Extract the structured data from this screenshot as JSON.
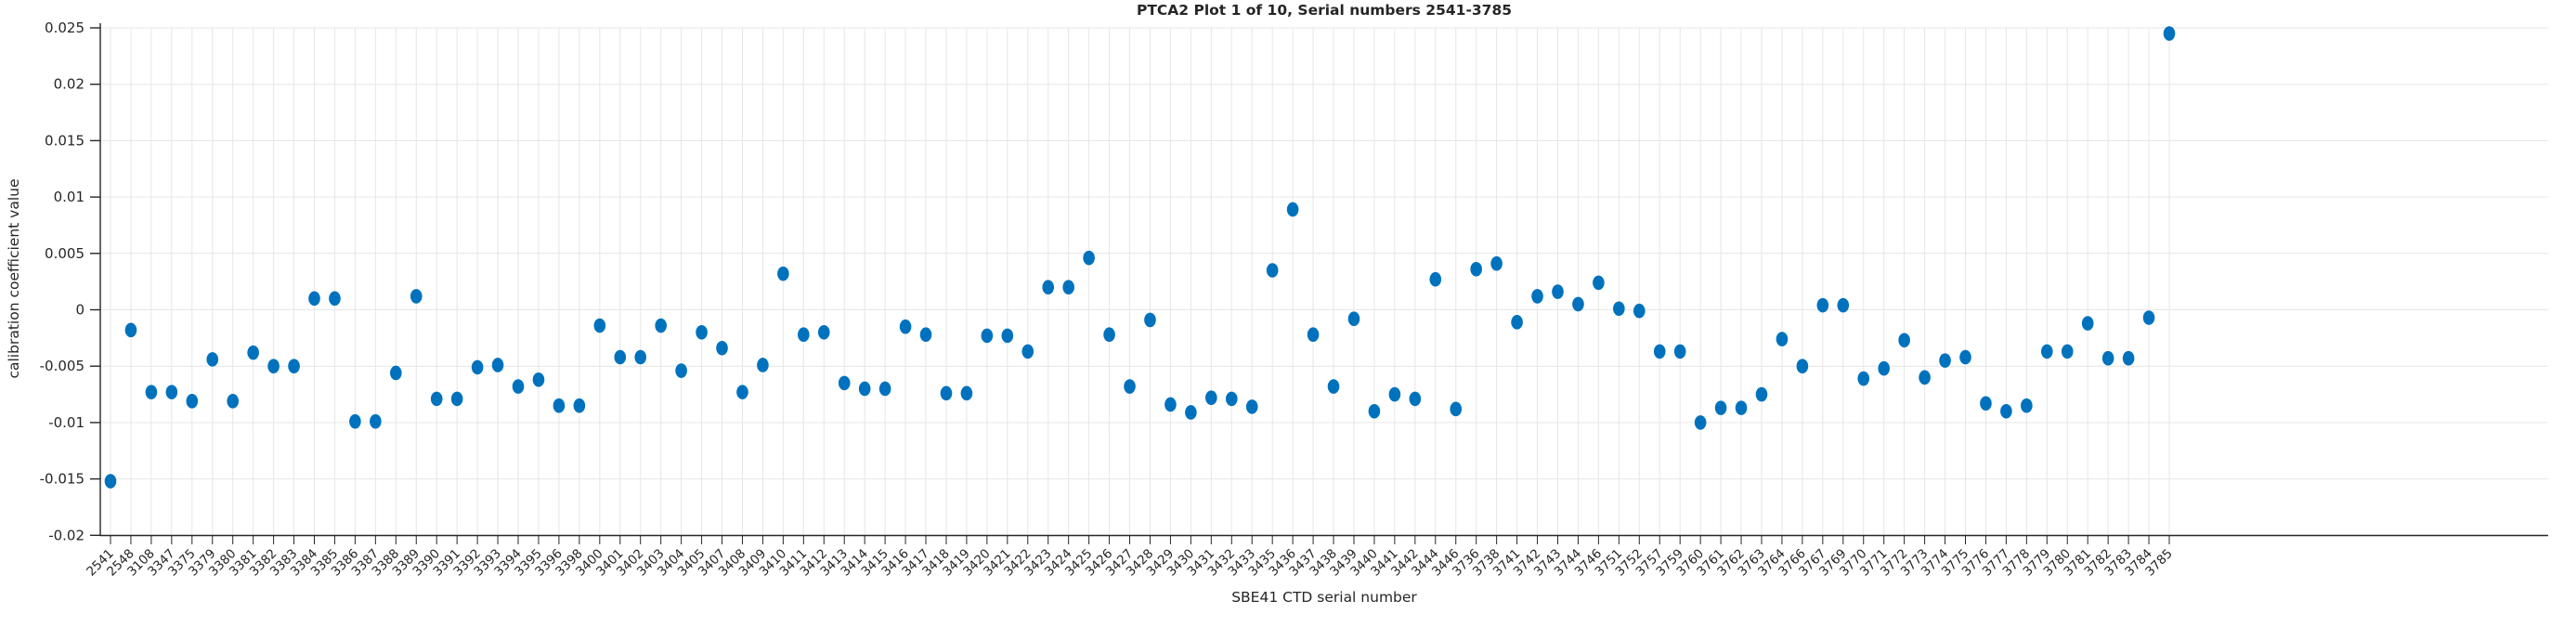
{
  "figure": {
    "title": "PTCA2 Plot 1 of 10, Serial numbers 2541-3785",
    "xlabel": "SBE41 CTD serial number",
    "ylabel": "calibration coefficient value"
  },
  "chart_data": {
    "type": "scatter",
    "title": "PTCA2 Plot 1 of 10, Serial numbers 2541-3785",
    "xlabel": "SBE41 CTD serial number",
    "ylabel": "calibration coefficient value",
    "ylim": [
      -0.02,
      0.025
    ],
    "y_ticks": [
      0.025,
      0.02,
      0.015,
      0.01,
      0.005,
      0,
      -0.005,
      -0.01,
      -0.015,
      -0.02
    ],
    "y_tick_labels": [
      "0.025",
      "0.02",
      "0.015",
      "0.01",
      "0.005",
      "0",
      "-0.005",
      "-0.01",
      "-0.015",
      "-0.02"
    ],
    "grid": true,
    "legend_position": "none",
    "marker": "dot",
    "marker_color": "#0072BD",
    "grid_color": "#e6e6e6",
    "axis_color": "#262626",
    "background_color": "#ffffff",
    "categories": [
      "2541",
      "2548",
      "3108",
      "3347",
      "3375",
      "3379",
      "3380",
      "3381",
      "3382",
      "3383",
      "3384",
      "3385",
      "3386",
      "3387",
      "3388",
      "3389",
      "3390",
      "3391",
      "3392",
      "3393",
      "3394",
      "3395",
      "3396",
      "3398",
      "3400",
      "3401",
      "3402",
      "3403",
      "3404",
      "3405",
      "3407",
      "3408",
      "3409",
      "3410",
      "3411",
      "3412",
      "3413",
      "3414",
      "3415",
      "3416",
      "3417",
      "3418",
      "3419",
      "3420",
      "3421",
      "3422",
      "3423",
      "3424",
      "3425",
      "3426",
      "3427",
      "3428",
      "3429",
      "3430",
      "3431",
      "3432",
      "3433",
      "3435",
      "3436",
      "3437",
      "3438",
      "3439",
      "3440",
      "3441",
      "3442",
      "3444",
      "3446",
      "3736",
      "3738",
      "3741",
      "3742",
      "3743",
      "3744",
      "3746",
      "3751",
      "3752",
      "3757",
      "3759",
      "3760",
      "3761",
      "3762",
      "3763",
      "3764",
      "3766",
      "3767",
      "3769",
      "3770",
      "3771",
      "3772",
      "3773",
      "3774",
      "3775",
      "3776",
      "3777",
      "3778",
      "3779",
      "3780",
      "3781",
      "3782",
      "3783",
      "3784",
      "3785"
    ],
    "values": [
      -0.0152,
      -0.0018,
      -0.0073,
      -0.0073,
      -0.0081,
      -0.0044,
      -0.0081,
      -0.0038,
      -0.005,
      -0.005,
      0.001,
      0.001,
      -0.0099,
      -0.0099,
      -0.0056,
      0.0012,
      -0.0079,
      -0.0079,
      -0.0051,
      -0.0049,
      -0.0068,
      -0.0062,
      -0.0085,
      -0.0085,
      -0.0014,
      -0.0042,
      -0.0042,
      -0.0014,
      -0.0054,
      -0.002,
      -0.0034,
      -0.0073,
      -0.0049,
      0.0032,
      -0.0022,
      -0.002,
      -0.0065,
      -0.007,
      -0.007,
      -0.0015,
      -0.0022,
      -0.0074,
      -0.0074,
      -0.0023,
      -0.0023,
      -0.0037,
      0.002,
      0.002,
      0.0046,
      -0.0022,
      -0.0068,
      -0.0009,
      -0.0084,
      -0.0091,
      -0.0078,
      -0.0079,
      -0.0086,
      0.0035,
      0.0089,
      -0.0022,
      -0.0068,
      -0.0008,
      -0.009,
      -0.0075,
      -0.0079,
      0.0027,
      -0.0088,
      0.0036,
      0.0041,
      -0.0011,
      0.0012,
      0.0016,
      0.0005,
      0.0024,
      0.0001,
      -0.0001,
      -0.0037,
      -0.0037,
      -0.01,
      -0.0087,
      -0.0087,
      -0.0075,
      -0.0026,
      -0.005,
      0.0004,
      0.0004,
      -0.0061,
      -0.0052,
      -0.0027,
      -0.006,
      -0.0045,
      -0.0042,
      -0.0083,
      -0.009,
      -0.0085,
      -0.0037,
      -0.0037,
      -0.0012,
      -0.0043,
      -0.0043,
      -0.0007,
      0.0245
    ]
  }
}
